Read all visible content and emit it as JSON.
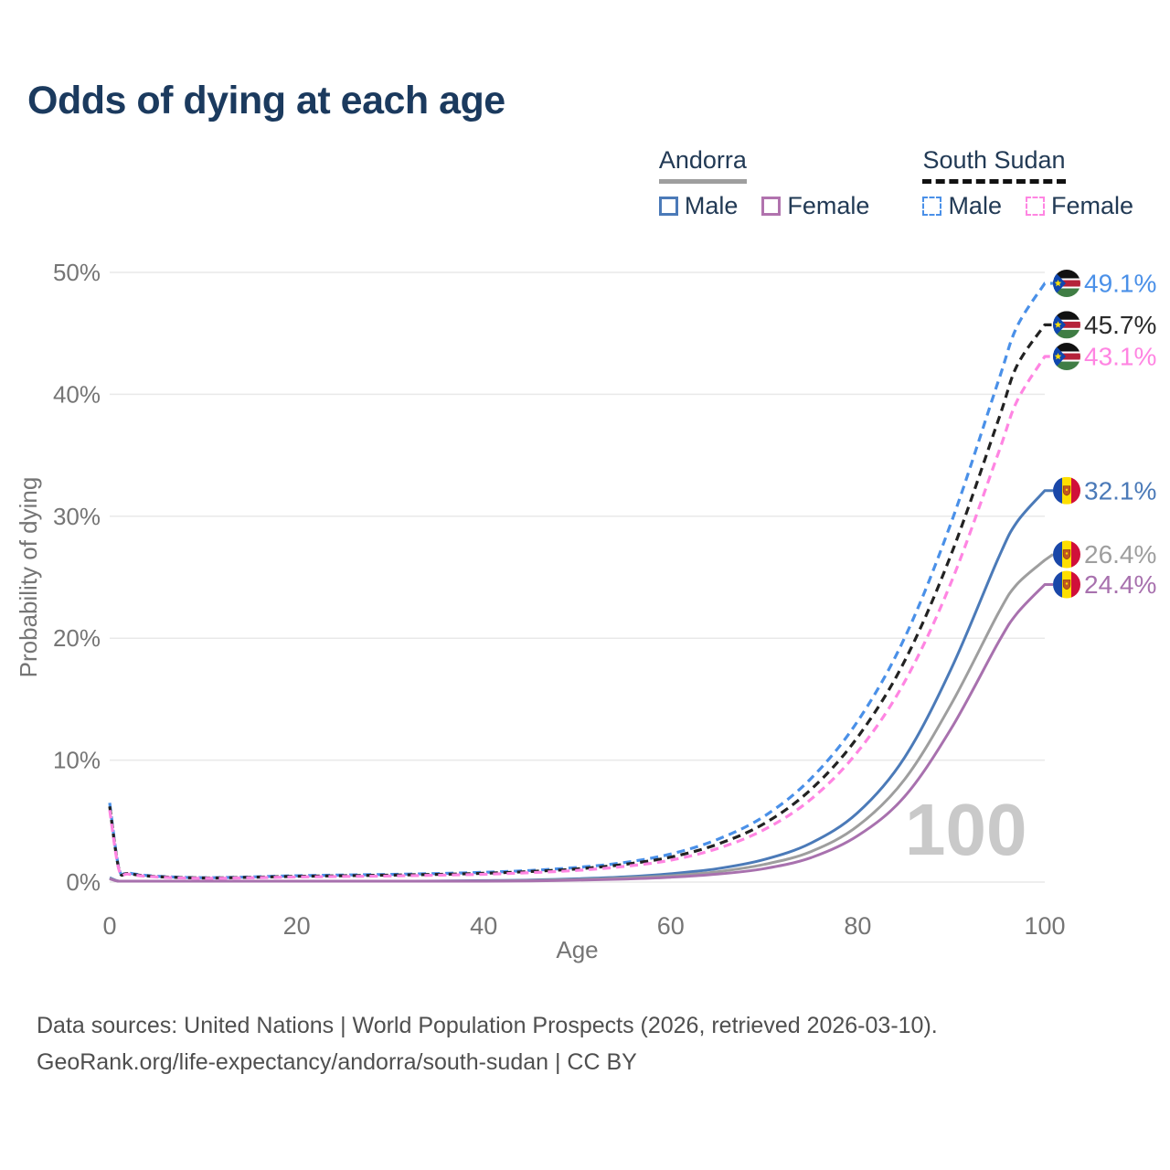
{
  "header": {
    "title": "Odds of dying at each age"
  },
  "legend": {
    "groups": [
      {
        "label": "Andorra",
        "underline_style": "solid",
        "underline_color": "#9e9e9e",
        "items": [
          {
            "label": "Male",
            "color": "#4b7ab8",
            "dashed": false
          },
          {
            "label": "Female",
            "color": "#b173ae",
            "dashed": false
          }
        ]
      },
      {
        "label": "South Sudan",
        "underline_style": "dashed",
        "underline_color": "#111111",
        "items": [
          {
            "label": "Male",
            "color": "#4a90e8",
            "dashed": true
          },
          {
            "label": "Female",
            "color": "#ff85e2",
            "dashed": true
          }
        ]
      }
    ]
  },
  "watermark": "100",
  "footer": {
    "line1": "Data sources: United Nations | World Population Prospects (2026, retrieved 2026-03-10).",
    "line2": "GeoRank.org/life-expectancy/andorra/south-sudan | CC BY"
  },
  "chart_data": {
    "type": "line",
    "title": "Odds of dying at each age",
    "xlabel": "Age",
    "ylabel": "Probability of dying",
    "xlim": [
      0,
      100
    ],
    "ylim": [
      0,
      50
    ],
    "x_ticks": [
      0,
      20,
      40,
      60,
      80,
      100
    ],
    "y_ticks": [
      0,
      10,
      20,
      30,
      40,
      50
    ],
    "y_tick_suffix": "%",
    "grid": "horizontal",
    "gridline_color": "#e9e9e9",
    "tick_color": "#757575",
    "legend_position": "top-right",
    "age_watermark": "100",
    "ages": [
      0,
      1,
      2,
      5,
      10,
      15,
      20,
      25,
      30,
      35,
      40,
      45,
      50,
      55,
      60,
      65,
      70,
      75,
      80,
      85,
      90,
      95,
      97,
      100
    ],
    "series": [
      {
        "name": "Andorra Male",
        "country": "Andorra",
        "sex": "Male",
        "flag": "andorra",
        "color": "#4b7ab8",
        "dashed": false,
        "end_label": "32.1%",
        "values": [
          0.35,
          0.04,
          0.02,
          0.012,
          0.012,
          0.025,
          0.045,
          0.055,
          0.065,
          0.085,
          0.12,
          0.17,
          0.27,
          0.42,
          0.68,
          1.1,
          1.85,
          3.2,
          5.7,
          10.2,
          17.5,
          26.5,
          29.5,
          32.1
        ]
      },
      {
        "name": "Andorra Both sexes",
        "country": "Andorra",
        "sex": "Both",
        "flag": "andorra",
        "color": "#9e9e9e",
        "dashed": false,
        "end_label": "26.4%",
        "values": [
          0.3,
          0.035,
          0.018,
          0.01,
          0.01,
          0.02,
          0.035,
          0.042,
          0.05,
          0.065,
          0.09,
          0.13,
          0.21,
          0.33,
          0.52,
          0.85,
          1.45,
          2.5,
          4.6,
          8.4,
          14.6,
          22.0,
          24.4,
          26.4
        ]
      },
      {
        "name": "Andorra Female",
        "country": "Andorra",
        "sex": "Female",
        "flag": "andorra",
        "color": "#a871ae",
        "dashed": false,
        "end_label": "24.4%",
        "values": [
          0.27,
          0.03,
          0.015,
          0.008,
          0.008,
          0.015,
          0.025,
          0.03,
          0.038,
          0.05,
          0.07,
          0.1,
          0.16,
          0.25,
          0.4,
          0.65,
          1.1,
          2.0,
          3.8,
          7.0,
          12.6,
          19.6,
          22.0,
          24.4
        ]
      },
      {
        "name": "South Sudan Male",
        "country": "South Sudan",
        "sex": "Male",
        "flag": "south-sudan",
        "color": "#4a90e8",
        "dashed": true,
        "end_label": "49.1%",
        "values": [
          6.5,
          1.1,
          0.75,
          0.48,
          0.36,
          0.42,
          0.52,
          0.58,
          0.63,
          0.7,
          0.8,
          0.95,
          1.2,
          1.6,
          2.3,
          3.5,
          5.4,
          8.5,
          13.2,
          20.0,
          29.5,
          41.0,
          45.5,
          49.1
        ]
      },
      {
        "name": "South Sudan Both sexes",
        "country": "South Sudan",
        "sex": "Both",
        "flag": "south-sudan",
        "color": "#222222",
        "dashed": true,
        "end_label": "45.7%",
        "values": [
          6.2,
          1.05,
          0.7,
          0.45,
          0.34,
          0.39,
          0.47,
          0.52,
          0.57,
          0.63,
          0.72,
          0.87,
          1.08,
          1.45,
          2.05,
          3.1,
          4.8,
          7.6,
          11.9,
          18.1,
          26.9,
          37.8,
          42.3,
          45.7
        ]
      },
      {
        "name": "South Sudan Female",
        "country": "South Sudan",
        "sex": "Female",
        "flag": "south-sudan",
        "color": "#ff85e2",
        "dashed": true,
        "end_label": "43.1%",
        "values": [
          5.9,
          1.0,
          0.65,
          0.42,
          0.31,
          0.35,
          0.42,
          0.46,
          0.5,
          0.56,
          0.64,
          0.77,
          0.96,
          1.28,
          1.8,
          2.75,
          4.3,
          6.8,
          10.7,
          16.4,
          24.6,
          35.1,
          39.4,
          43.1
        ]
      }
    ]
  }
}
